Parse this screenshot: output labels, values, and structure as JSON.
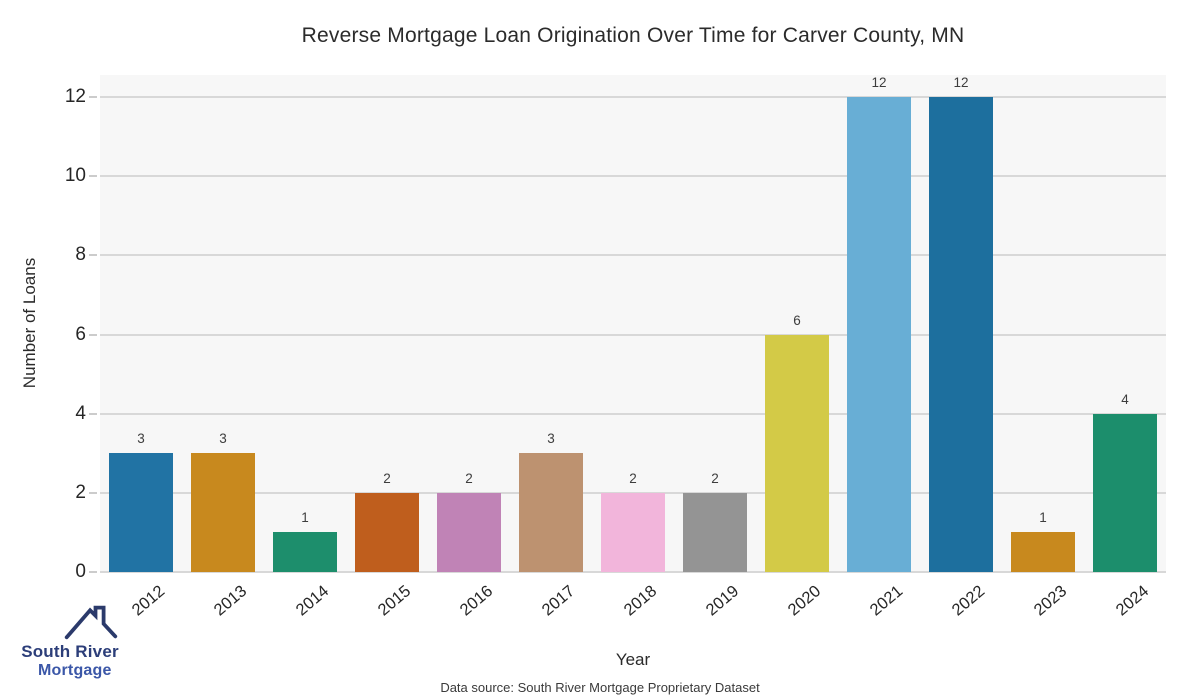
{
  "chart_data": {
    "type": "bar",
    "title": "Reverse Mortgage Loan Origination Over Time for Carver County, MN",
    "xlabel": "Year",
    "ylabel": "Number of Loans",
    "categories": [
      "2012",
      "2013",
      "2014",
      "2015",
      "2016",
      "2017",
      "2018",
      "2019",
      "2020",
      "2021",
      "2022",
      "2023",
      "2024"
    ],
    "values": [
      3,
      3,
      1,
      2,
      2,
      3,
      2,
      2,
      6,
      12,
      12,
      1,
      4
    ],
    "bar_colors": [
      "#2173a4",
      "#c8891e",
      "#1d8e6c",
      "#bf5e1d",
      "#c083b6",
      "#bd9270",
      "#f2b5db",
      "#949494",
      "#d3ca47",
      "#68aed5",
      "#1d6f9e",
      "#c8891e",
      "#1c8e6c"
    ],
    "yticks": [
      0,
      2,
      4,
      6,
      8,
      10,
      12
    ],
    "ylim": [
      0,
      12.56
    ],
    "grid": "horizontal",
    "legend": "none",
    "plot_bg": "#f7f7f7",
    "gridline_color": "#d8d8d8",
    "tick_color": "#262626",
    "value_label_color": "#3d3d3d"
  },
  "footer": {
    "data_source": "Data source: South River Mortgage Proprietary Dataset"
  },
  "logo": {
    "line1": "South River",
    "line2": "Mortgage",
    "roof_color": "#2b3a6b",
    "line1_color": "#2c3e79",
    "line2_color": "#3b57a8"
  }
}
